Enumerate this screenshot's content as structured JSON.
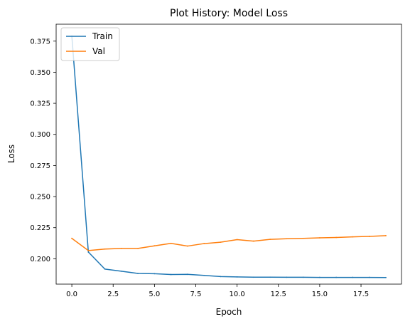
{
  "chart_data": {
    "type": "line",
    "title": "Plot History: Model Loss",
    "xlabel": "Epoch",
    "ylabel": "Loss",
    "xlim": [
      -0.95,
      19.95
    ],
    "ylim": [
      0.1796,
      0.3886
    ],
    "xticks": [
      0.0,
      2.5,
      5.0,
      7.5,
      10.0,
      12.5,
      15.0,
      17.5
    ],
    "xtick_labels": [
      "0.0",
      "2.5",
      "5.0",
      "7.5",
      "10.0",
      "12.5",
      "15.0",
      "17.5"
    ],
    "yticks": [
      0.2,
      0.225,
      0.25,
      0.275,
      0.3,
      0.325,
      0.35,
      0.375
    ],
    "ytick_labels": [
      "0.200",
      "0.225",
      "0.250",
      "0.275",
      "0.300",
      "0.325",
      "0.350",
      "0.375"
    ],
    "grid": false,
    "legend_position": "top-left",
    "x": [
      0,
      1,
      2,
      3,
      4,
      5,
      6,
      7,
      8,
      9,
      10,
      11,
      12,
      13,
      14,
      15,
      16,
      17,
      18,
      19
    ],
    "series": [
      {
        "name": "Train",
        "color": "#1f77b4",
        "values": [
          0.3791,
          0.2054,
          0.1917,
          0.19,
          0.1882,
          0.188,
          0.1873,
          0.1875,
          0.1866,
          0.1857,
          0.1854,
          0.1852,
          0.1852,
          0.1851,
          0.1851,
          0.185,
          0.185,
          0.185,
          0.185,
          0.1849
        ]
      },
      {
        "name": "Val",
        "color": "#ff7f0e",
        "values": [
          0.2164,
          0.2066,
          0.2078,
          0.2083,
          0.2083,
          0.2104,
          0.2124,
          0.2102,
          0.2122,
          0.2133,
          0.2154,
          0.2142,
          0.2156,
          0.2161,
          0.2164,
          0.2168,
          0.2171,
          0.2176,
          0.218,
          0.2186
        ]
      }
    ]
  }
}
